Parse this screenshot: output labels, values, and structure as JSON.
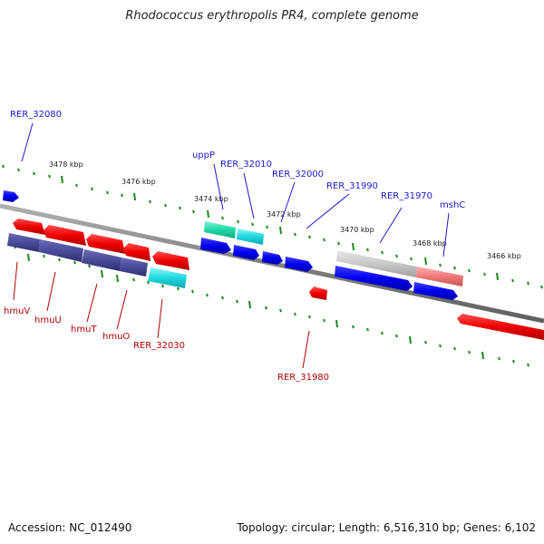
{
  "title": "Rhodococcus erythropolis PR4, complete genome",
  "accession": "Accession: NC_012490",
  "summary": "Topology: circular; Length: 6,516,310 bp; Genes: 6,102",
  "kbp_labels": [
    "3478 kbp",
    "3476 kbp",
    "3474 kbp",
    "3472 kbp",
    "3470 kbp",
    "3468 kbp",
    "3466 kbp"
  ],
  "gene_labels_top": [
    "RER_32080",
    "uppP",
    "RER_32010",
    "RER_32000",
    "RER_31990",
    "RER_31970",
    "mshC"
  ],
  "gene_labels_bottom": [
    "hmuV",
    "hmuU",
    "hmuT",
    "hmuO",
    "RER_32030",
    "RER_31980"
  ],
  "colors": {
    "forward": "#0000ee",
    "reverse": "#ee0000",
    "hmu_cluster": "#4a4a9a",
    "cyan": "#1fd8e0",
    "teal": "#20d8a8",
    "grey_gene": "#c8c8c8",
    "pink_gene": "#f07a7a",
    "backbone": "#808080",
    "ticks": "#1a8a1a",
    "label_blue": "#1a1acc",
    "label_red": "#b00000"
  }
}
